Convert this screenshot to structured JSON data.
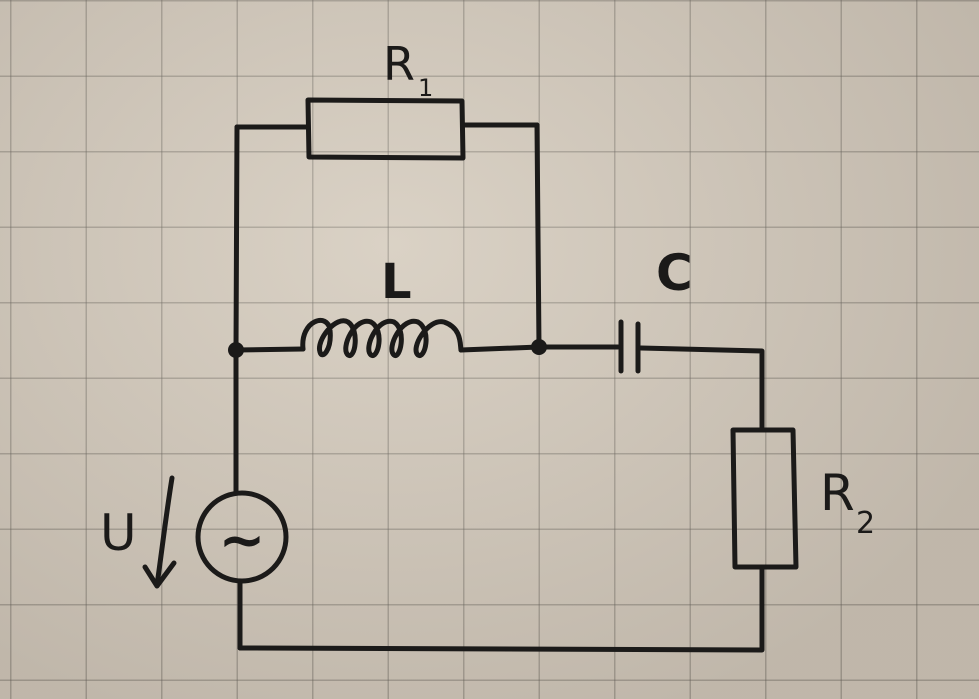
{
  "labels": {
    "r1": {
      "main": "R",
      "sub": "1"
    },
    "l": "L",
    "c": "C",
    "r2": {
      "main": "R",
      "sub": "2"
    },
    "u": "U",
    "source_symbol": "~"
  }
}
